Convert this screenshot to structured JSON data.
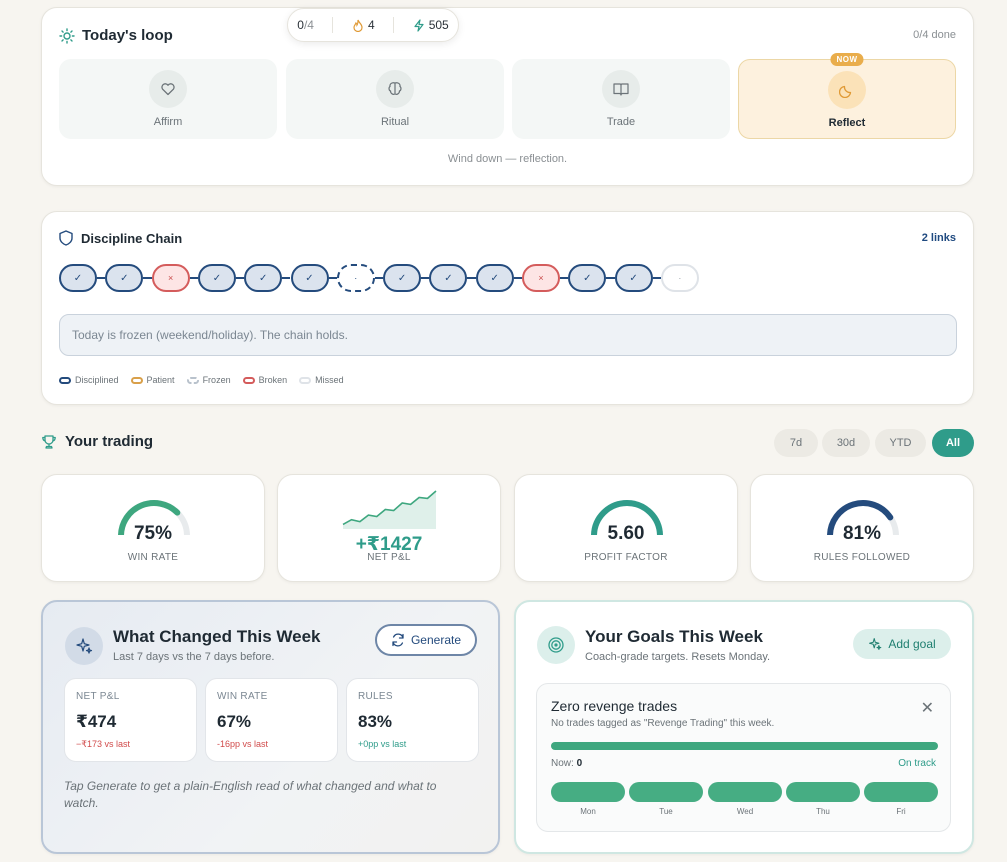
{
  "top_pill": {
    "progress": "0",
    "progress_total": "/4",
    "streak": "4",
    "xp": "505"
  },
  "loop": {
    "title": "Today's loop",
    "done": "0/4 done",
    "tiles": [
      {
        "label": "Affirm",
        "icon": "heart-icon"
      },
      {
        "label": "Ritual",
        "icon": "brain-icon"
      },
      {
        "label": "Trade",
        "icon": "book-icon"
      },
      {
        "label": "Reflect",
        "icon": "moon-icon",
        "badge": "NOW"
      }
    ],
    "subtitle": "Wind down — reflection."
  },
  "chain": {
    "title": "Discipline Chain",
    "links_count": "2 links",
    "links": [
      "disciplined",
      "disciplined",
      "broken",
      "disciplined",
      "disciplined",
      "disciplined",
      "frozen",
      "disciplined",
      "disciplined",
      "disciplined",
      "broken",
      "disciplined",
      "disciplined",
      "missed"
    ],
    "glyphs": {
      "disciplined": "✓",
      "broken": "×",
      "frozen": "·",
      "missed": "·"
    },
    "note": "Today is frozen (weekend/holiday). The chain holds.",
    "legend": [
      {
        "label": "Disciplined",
        "color": "#244b7d"
      },
      {
        "label": "Patient",
        "color": "#d9a04a"
      },
      {
        "label": "Frozen",
        "color": "#b9c2cc"
      },
      {
        "label": "Broken",
        "color": "#d45c5c"
      },
      {
        "label": "Missed",
        "color": "#dfe3e8"
      }
    ]
  },
  "trading": {
    "title": "Your trading",
    "ranges": [
      "7d",
      "30d",
      "YTD",
      "All"
    ],
    "selected_range": "All",
    "metrics": [
      {
        "value": "75%",
        "caption": "WIN RATE",
        "gauge_fraction": 0.75,
        "color": "#3ea77f"
      },
      {
        "value": "+₹1427",
        "caption": "NET P&L",
        "spark": [
          2,
          3,
          2.6,
          4,
          3.7,
          5.2,
          5.0,
          6.6,
          6.3,
          7.8,
          7.6,
          9.2
        ]
      },
      {
        "value": "5.60",
        "caption": "PROFIT FACTOR",
        "gauge_fraction": 1.0,
        "color": "#2f9c8a"
      },
      {
        "value": "81%",
        "caption": "RULES FOLLOWED",
        "gauge_fraction": 0.81,
        "color": "#244b7d"
      }
    ]
  },
  "changed": {
    "title": "What Changed This Week",
    "subtitle": "Last 7 days vs the 7 days before.",
    "button": "Generate",
    "stats": [
      {
        "key": "NET P&L",
        "value": "₹474",
        "delta": "−₹173 vs last"
      },
      {
        "key": "WIN RATE",
        "value": "67%",
        "delta": "-16pp vs last"
      },
      {
        "key": "RULES",
        "value": "83%",
        "delta": "+0pp vs last"
      }
    ],
    "footer": "Tap Generate to get a plain-English read of what changed and what to watch."
  },
  "goals": {
    "title": "Your Goals This Week",
    "subtitle": "Coach-grade targets. Resets Monday.",
    "button": "Add goal",
    "goal": {
      "title": "Zero revenge trades",
      "subtitle": "No trades tagged as \"Revenge Trading\" this week.",
      "now_label": "Now:",
      "now_value": "0",
      "status": "On track",
      "progress": 1.0,
      "days": [
        "Mon",
        "Tue",
        "Wed",
        "Thu",
        "Fri"
      ]
    }
  }
}
